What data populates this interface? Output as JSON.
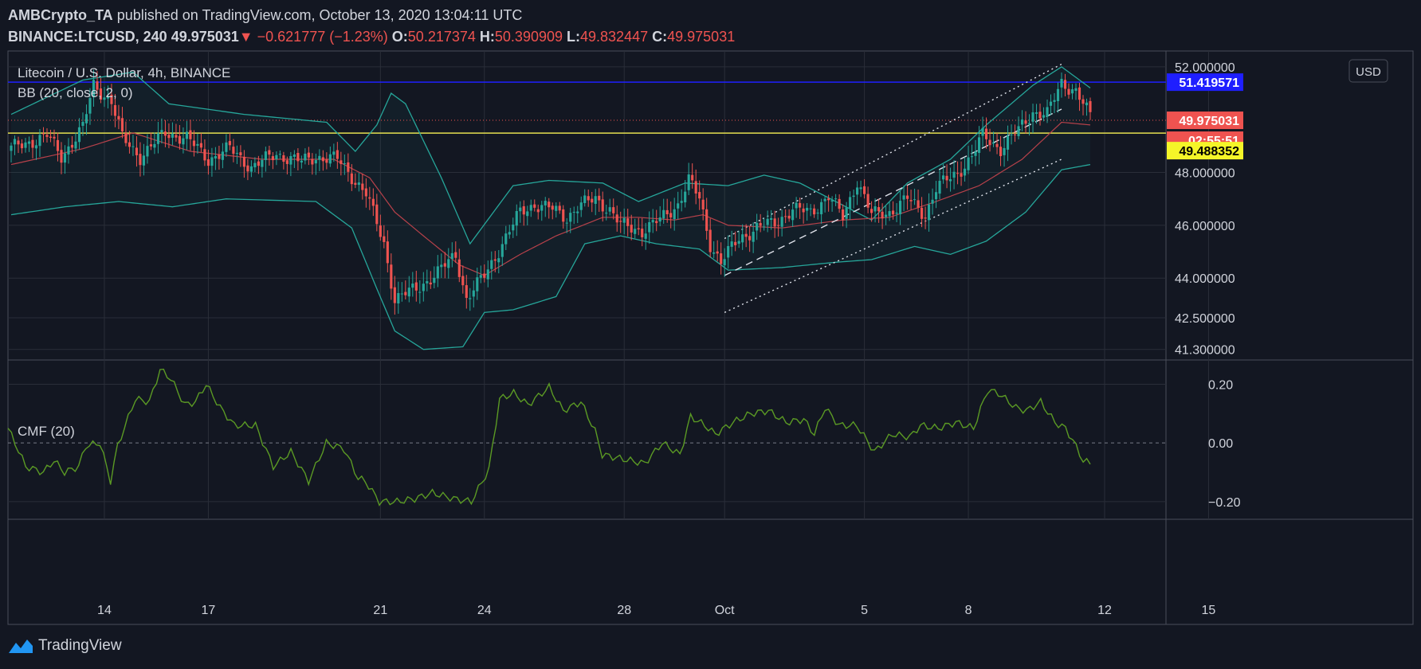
{
  "header": {
    "author": "AMBCrypto_TA",
    "published_text": "published on TradingView.com, October 13, 2020 13:04:11 UTC",
    "symbol": "BINANCE:LTCUSD, 240",
    "last": "49.975031",
    "arrow": "▼",
    "change": "−0.621777 (−1.23%)",
    "o_label": "O:",
    "o": "50.217374",
    "h_label": "H:",
    "h": "50.390909",
    "l_label": "L:",
    "l": "49.832447",
    "c_label": "C:",
    "c": "49.975031"
  },
  "footer": {
    "brand": "TradingView",
    "logo_icon": "tradingview-logo-icon"
  },
  "colors": {
    "background": "#131722",
    "grid": "#2a2e39",
    "up": "#26a69a",
    "down": "#ef5350",
    "bb_band": "#26a69a",
    "bb_basis": "#b7414a",
    "cmf": "#5b9a24",
    "resistance": "#1f1fff",
    "support": "#e6e050",
    "price_line": "#ef5350"
  },
  "chart_data": [
    {
      "type": "candlestick",
      "title": "Litecoin / U.S. Dollar, 4h, BINANCE",
      "indicator_label": "BB (20, close, 2, 0)",
      "currency": "USD",
      "x_ticks": [
        "14",
        "17",
        "21",
        "24",
        "28",
        "Oct",
        "5",
        "8",
        "12",
        "15"
      ],
      "y_ticks": [
        "52.000000",
        "48.000000",
        "46.000000",
        "44.000000",
        "42.500000",
        "41.300000"
      ],
      "ylim": [
        40.9,
        52.6
      ],
      "lines": {
        "resistance": 51.42,
        "support": 49.49,
        "last_price": 49.975
      },
      "price_tags": {
        "resistance": "51.419571",
        "last": "49.975031",
        "countdown": "02:55:51",
        "support": "49.488352"
      },
      "close_anchors": [
        [
          0,
          48.9
        ],
        [
          10,
          49.4
        ],
        [
          14,
          48.6
        ],
        [
          20,
          49.7
        ],
        [
          23,
          51.3
        ],
        [
          28,
          50.7
        ],
        [
          31,
          49.3
        ],
        [
          36,
          48.6
        ],
        [
          43,
          49.5
        ],
        [
          49,
          49.3
        ],
        [
          55,
          48.5
        ],
        [
          61,
          48.9
        ],
        [
          67,
          48.2
        ],
        [
          74,
          48.7
        ],
        [
          81,
          48.4
        ],
        [
          85,
          48.6
        ],
        [
          91,
          48.5
        ],
        [
          96,
          47.7
        ],
        [
          99,
          47.2
        ],
        [
          104,
          45.3
        ],
        [
          107,
          43.2
        ],
        [
          113,
          43.6
        ],
        [
          119,
          44.2
        ],
        [
          124,
          44.9
        ],
        [
          127,
          43.2
        ],
        [
          132,
          44.1
        ],
        [
          137,
          45.3
        ],
        [
          142,
          46.5
        ],
        [
          146,
          46.8
        ],
        [
          151,
          46.6
        ],
        [
          155,
          46.3
        ],
        [
          158,
          46.7
        ],
        [
          163,
          47.0
        ],
        [
          167,
          46.6
        ],
        [
          170,
          46.0
        ],
        [
          176,
          45.8
        ],
        [
          181,
          46.2
        ],
        [
          186,
          46.8
        ],
        [
          189,
          47.7
        ],
        [
          192,
          47.0
        ],
        [
          195,
          45.3
        ],
        [
          198,
          44.6
        ],
        [
          203,
          45.5
        ],
        [
          208,
          45.9
        ],
        [
          213,
          46.1
        ],
        [
          218,
          46.6
        ],
        [
          223,
          46.5
        ],
        [
          228,
          47.1
        ],
        [
          232,
          46.3
        ],
        [
          236,
          47.7
        ],
        [
          240,
          46.4
        ],
        [
          245,
          46.5
        ],
        [
          250,
          47.0
        ],
        [
          255,
          46.4
        ],
        [
          258,
          47.4
        ],
        [
          264,
          48.0
        ],
        [
          268,
          48.6
        ],
        [
          271,
          49.4
        ],
        [
          276,
          48.9
        ],
        [
          281,
          49.6
        ],
        [
          285,
          50.3
        ],
        [
          289,
          50.2
        ],
        [
          293,
          51.4
        ],
        [
          297,
          51.1
        ],
        [
          301,
          50.1
        ]
      ],
      "bb_upper_anchors": [
        [
          0,
          50.2
        ],
        [
          20,
          51.5
        ],
        [
          34,
          51.8
        ],
        [
          44,
          50.6
        ],
        [
          65,
          50.2
        ],
        [
          88,
          49.9
        ],
        [
          96,
          48.8
        ],
        [
          102,
          49.8
        ],
        [
          106,
          51.0
        ],
        [
          110,
          50.6
        ],
        [
          120,
          47.8
        ],
        [
          128,
          45.3
        ],
        [
          140,
          47.5
        ],
        [
          150,
          47.7
        ],
        [
          165,
          47.6
        ],
        [
          175,
          46.9
        ],
        [
          188,
          47.6
        ],
        [
          200,
          47.5
        ],
        [
          210,
          47.9
        ],
        [
          220,
          47.6
        ],
        [
          240,
          46.2
        ],
        [
          250,
          47.6
        ],
        [
          262,
          48.5
        ],
        [
          272,
          49.8
        ],
        [
          285,
          51.3
        ],
        [
          293,
          52.0
        ],
        [
          301,
          51.2
        ]
      ],
      "bb_lower_anchors": [
        [
          0,
          46.4
        ],
        [
          15,
          46.7
        ],
        [
          30,
          46.9
        ],
        [
          45,
          46.7
        ],
        [
          60,
          47.0
        ],
        [
          85,
          46.9
        ],
        [
          95,
          45.9
        ],
        [
          102,
          43.6
        ],
        [
          107,
          42.0
        ],
        [
          115,
          41.3
        ],
        [
          126,
          41.4
        ],
        [
          132,
          42.7
        ],
        [
          140,
          42.8
        ],
        [
          152,
          43.3
        ],
        [
          160,
          45.3
        ],
        [
          170,
          45.6
        ],
        [
          180,
          45.3
        ],
        [
          192,
          45.1
        ],
        [
          200,
          44.3
        ],
        [
          215,
          44.4
        ],
        [
          230,
          44.6
        ],
        [
          240,
          44.7
        ],
        [
          252,
          45.2
        ],
        [
          262,
          44.9
        ],
        [
          272,
          45.4
        ],
        [
          283,
          46.5
        ],
        [
          293,
          48.1
        ],
        [
          301,
          48.3
        ]
      ],
      "bb_basis_anchors": [
        [
          0,
          48.3
        ],
        [
          20,
          48.9
        ],
        [
          34,
          49.5
        ],
        [
          50,
          48.8
        ],
        [
          70,
          48.5
        ],
        [
          90,
          48.5
        ],
        [
          100,
          47.8
        ],
        [
          107,
          46.5
        ],
        [
          115,
          45.6
        ],
        [
          125,
          44.5
        ],
        [
          132,
          44.1
        ],
        [
          142,
          44.9
        ],
        [
          152,
          45.6
        ],
        [
          165,
          46.3
        ],
        [
          175,
          46.3
        ],
        [
          185,
          46.2
        ],
        [
          193,
          46.4
        ],
        [
          200,
          46.0
        ],
        [
          215,
          45.9
        ],
        [
          232,
          46.2
        ],
        [
          245,
          46.3
        ],
        [
          258,
          46.9
        ],
        [
          270,
          47.5
        ],
        [
          282,
          48.5
        ],
        [
          293,
          49.9
        ],
        [
          301,
          49.8
        ]
      ],
      "channel_upper": [
        [
          199,
          45.5
        ],
        [
          293,
          52.1
        ]
      ],
      "channel_mid": [
        [
          199,
          44.1
        ],
        [
          293,
          50.4
        ]
      ],
      "channel_lower": [
        [
          199,
          42.7
        ],
        [
          293,
          48.5
        ]
      ]
    },
    {
      "type": "line",
      "title": "CMF (20)",
      "y_ticks": [
        "0.20",
        "0.00",
        "−0.20"
      ],
      "ylim": [
        -0.26,
        0.28
      ],
      "zero_line": 0,
      "values_anchors": [
        [
          0,
          0.05
        ],
        [
          2,
          0.0
        ],
        [
          5,
          -0.08
        ],
        [
          10,
          -0.1
        ],
        [
          13,
          -0.06
        ],
        [
          16,
          -0.1
        ],
        [
          20,
          -0.08
        ],
        [
          22,
          -0.01
        ],
        [
          26,
          0.0
        ],
        [
          29,
          -0.13
        ],
        [
          31,
          -0.01
        ],
        [
          36,
          0.15
        ],
        [
          40,
          0.14
        ],
        [
          43,
          0.25
        ],
        [
          46,
          0.22
        ],
        [
          50,
          0.13
        ],
        [
          53,
          0.14
        ],
        [
          56,
          0.2
        ],
        [
          60,
          0.12
        ],
        [
          64,
          0.06
        ],
        [
          70,
          0.06
        ],
        [
          75,
          -0.08
        ],
        [
          80,
          -0.03
        ],
        [
          85,
          -0.13
        ],
        [
          90,
          0.0
        ],
        [
          95,
          -0.02
        ],
        [
          99,
          -0.12
        ],
        [
          101,
          -0.13
        ],
        [
          105,
          -0.2
        ],
        [
          110,
          -0.2
        ],
        [
          115,
          -0.19
        ],
        [
          120,
          -0.17
        ],
        [
          126,
          -0.19
        ],
        [
          131,
          -0.2
        ],
        [
          136,
          -0.09
        ],
        [
          139,
          0.15
        ],
        [
          143,
          0.17
        ],
        [
          147,
          0.13
        ],
        [
          153,
          0.19
        ],
        [
          157,
          0.11
        ],
        [
          162,
          0.14
        ],
        [
          166,
          0.04
        ],
        [
          168,
          -0.04
        ],
        [
          172,
          -0.05
        ],
        [
          180,
          -0.07
        ],
        [
          185,
          0.0
        ],
        [
          190,
          -0.04
        ],
        [
          193,
          0.09
        ],
        [
          197,
          0.06
        ],
        [
          200,
          0.03
        ],
        [
          205,
          0.07
        ],
        [
          210,
          0.1
        ],
        [
          215,
          0.11
        ],
        [
          220,
          0.07
        ],
        [
          225,
          0.08
        ],
        [
          228,
          0.03
        ],
        [
          231,
          0.12
        ],
        [
          235,
          0.06
        ],
        [
          240,
          0.06
        ],
        [
          245,
          -0.03
        ],
        [
          250,
          0.03
        ],
        [
          255,
          0.02
        ],
        [
          258,
          0.06
        ],
        [
          263,
          0.05
        ],
        [
          268,
          0.07
        ],
        [
          273,
          0.05
        ],
        [
          277,
          0.18
        ],
        [
          280,
          0.17
        ],
        [
          285,
          0.12
        ],
        [
          288,
          0.11
        ],
        [
          292,
          0.14
        ],
        [
          296,
          0.07
        ],
        [
          299,
          0.05
        ],
        [
          301,
          0.01
        ],
        [
          304,
          -0.06
        ],
        [
          306,
          -0.07
        ]
      ]
    }
  ]
}
